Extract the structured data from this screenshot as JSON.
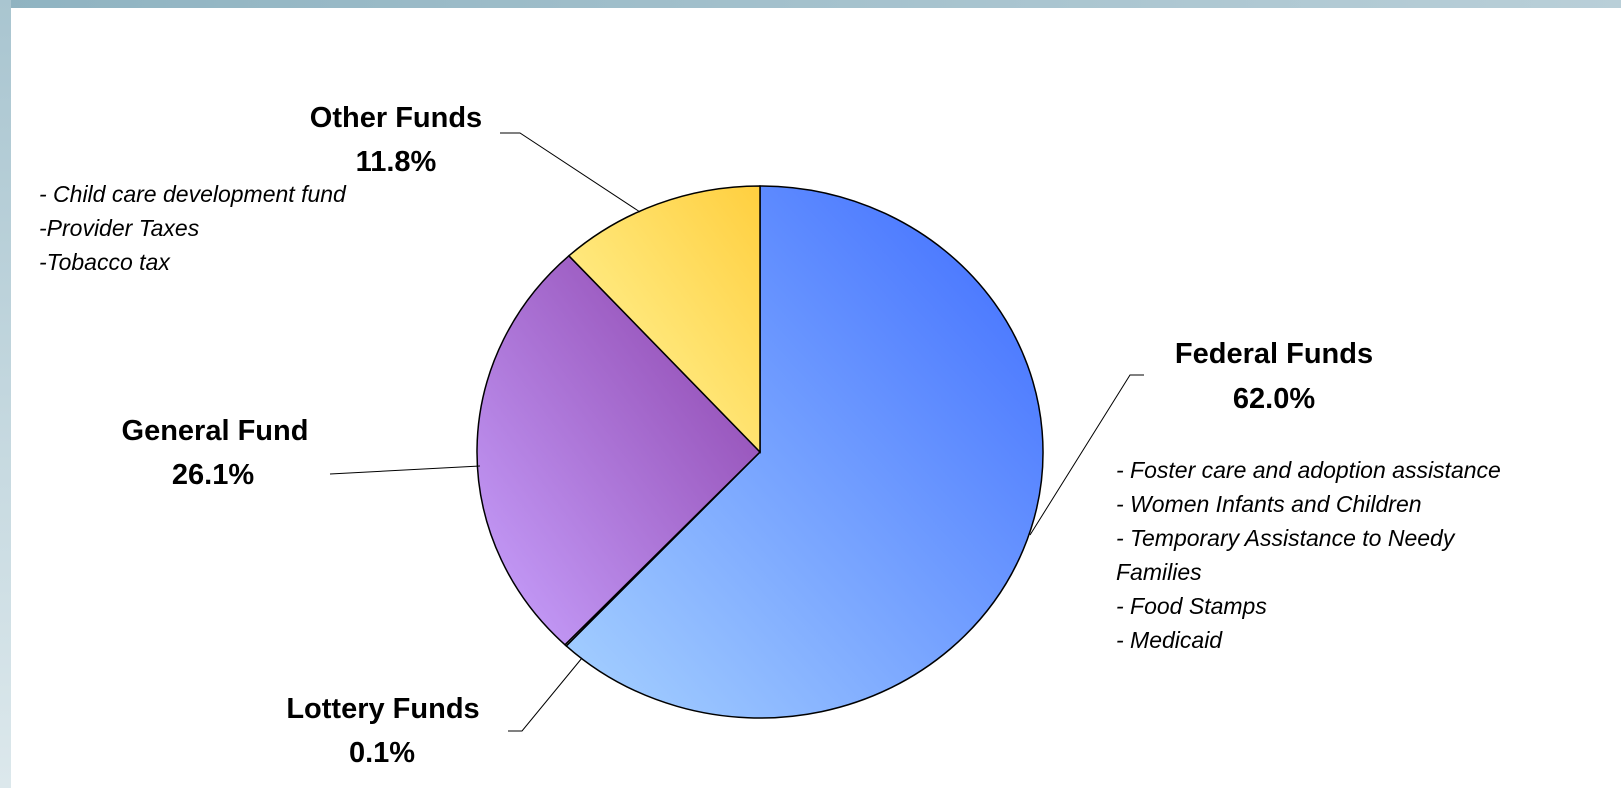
{
  "chart_data": {
    "type": "pie",
    "title": "",
    "slices": [
      {
        "name": "Federal Funds",
        "value": 62.0,
        "label": "62.0%",
        "color_light": "#a7d2ff",
        "color_dark": "#3d6bff",
        "notes": [
          "- Foster care and adoption assistance",
          "- Women Infants and Children",
          "- Temporary Assistance to Needy",
          "Families",
          "- Food Stamps",
          "- Medicaid"
        ]
      },
      {
        "name": "Lottery Funds",
        "value": 0.1,
        "label": "0.1%",
        "color_light": "#f3f3f3",
        "color_dark": "#d0d0d0",
        "notes": []
      },
      {
        "name": "General Fund",
        "value": 26.1,
        "label": "26.1%",
        "color_light": "#c9a3ff",
        "color_dark": "#8a3fa8",
        "notes": []
      },
      {
        "name": "Other Funds",
        "value": 11.8,
        "label": "11.8%",
        "color_light": "#fff7a0",
        "color_dark": "#ffcf3f",
        "notes": [
          "- Child care development fund",
          "-Provider Taxes",
          "-Tobacco tax"
        ]
      }
    ],
    "start_at": "top",
    "direction": "clockwise",
    "legend": "none"
  }
}
